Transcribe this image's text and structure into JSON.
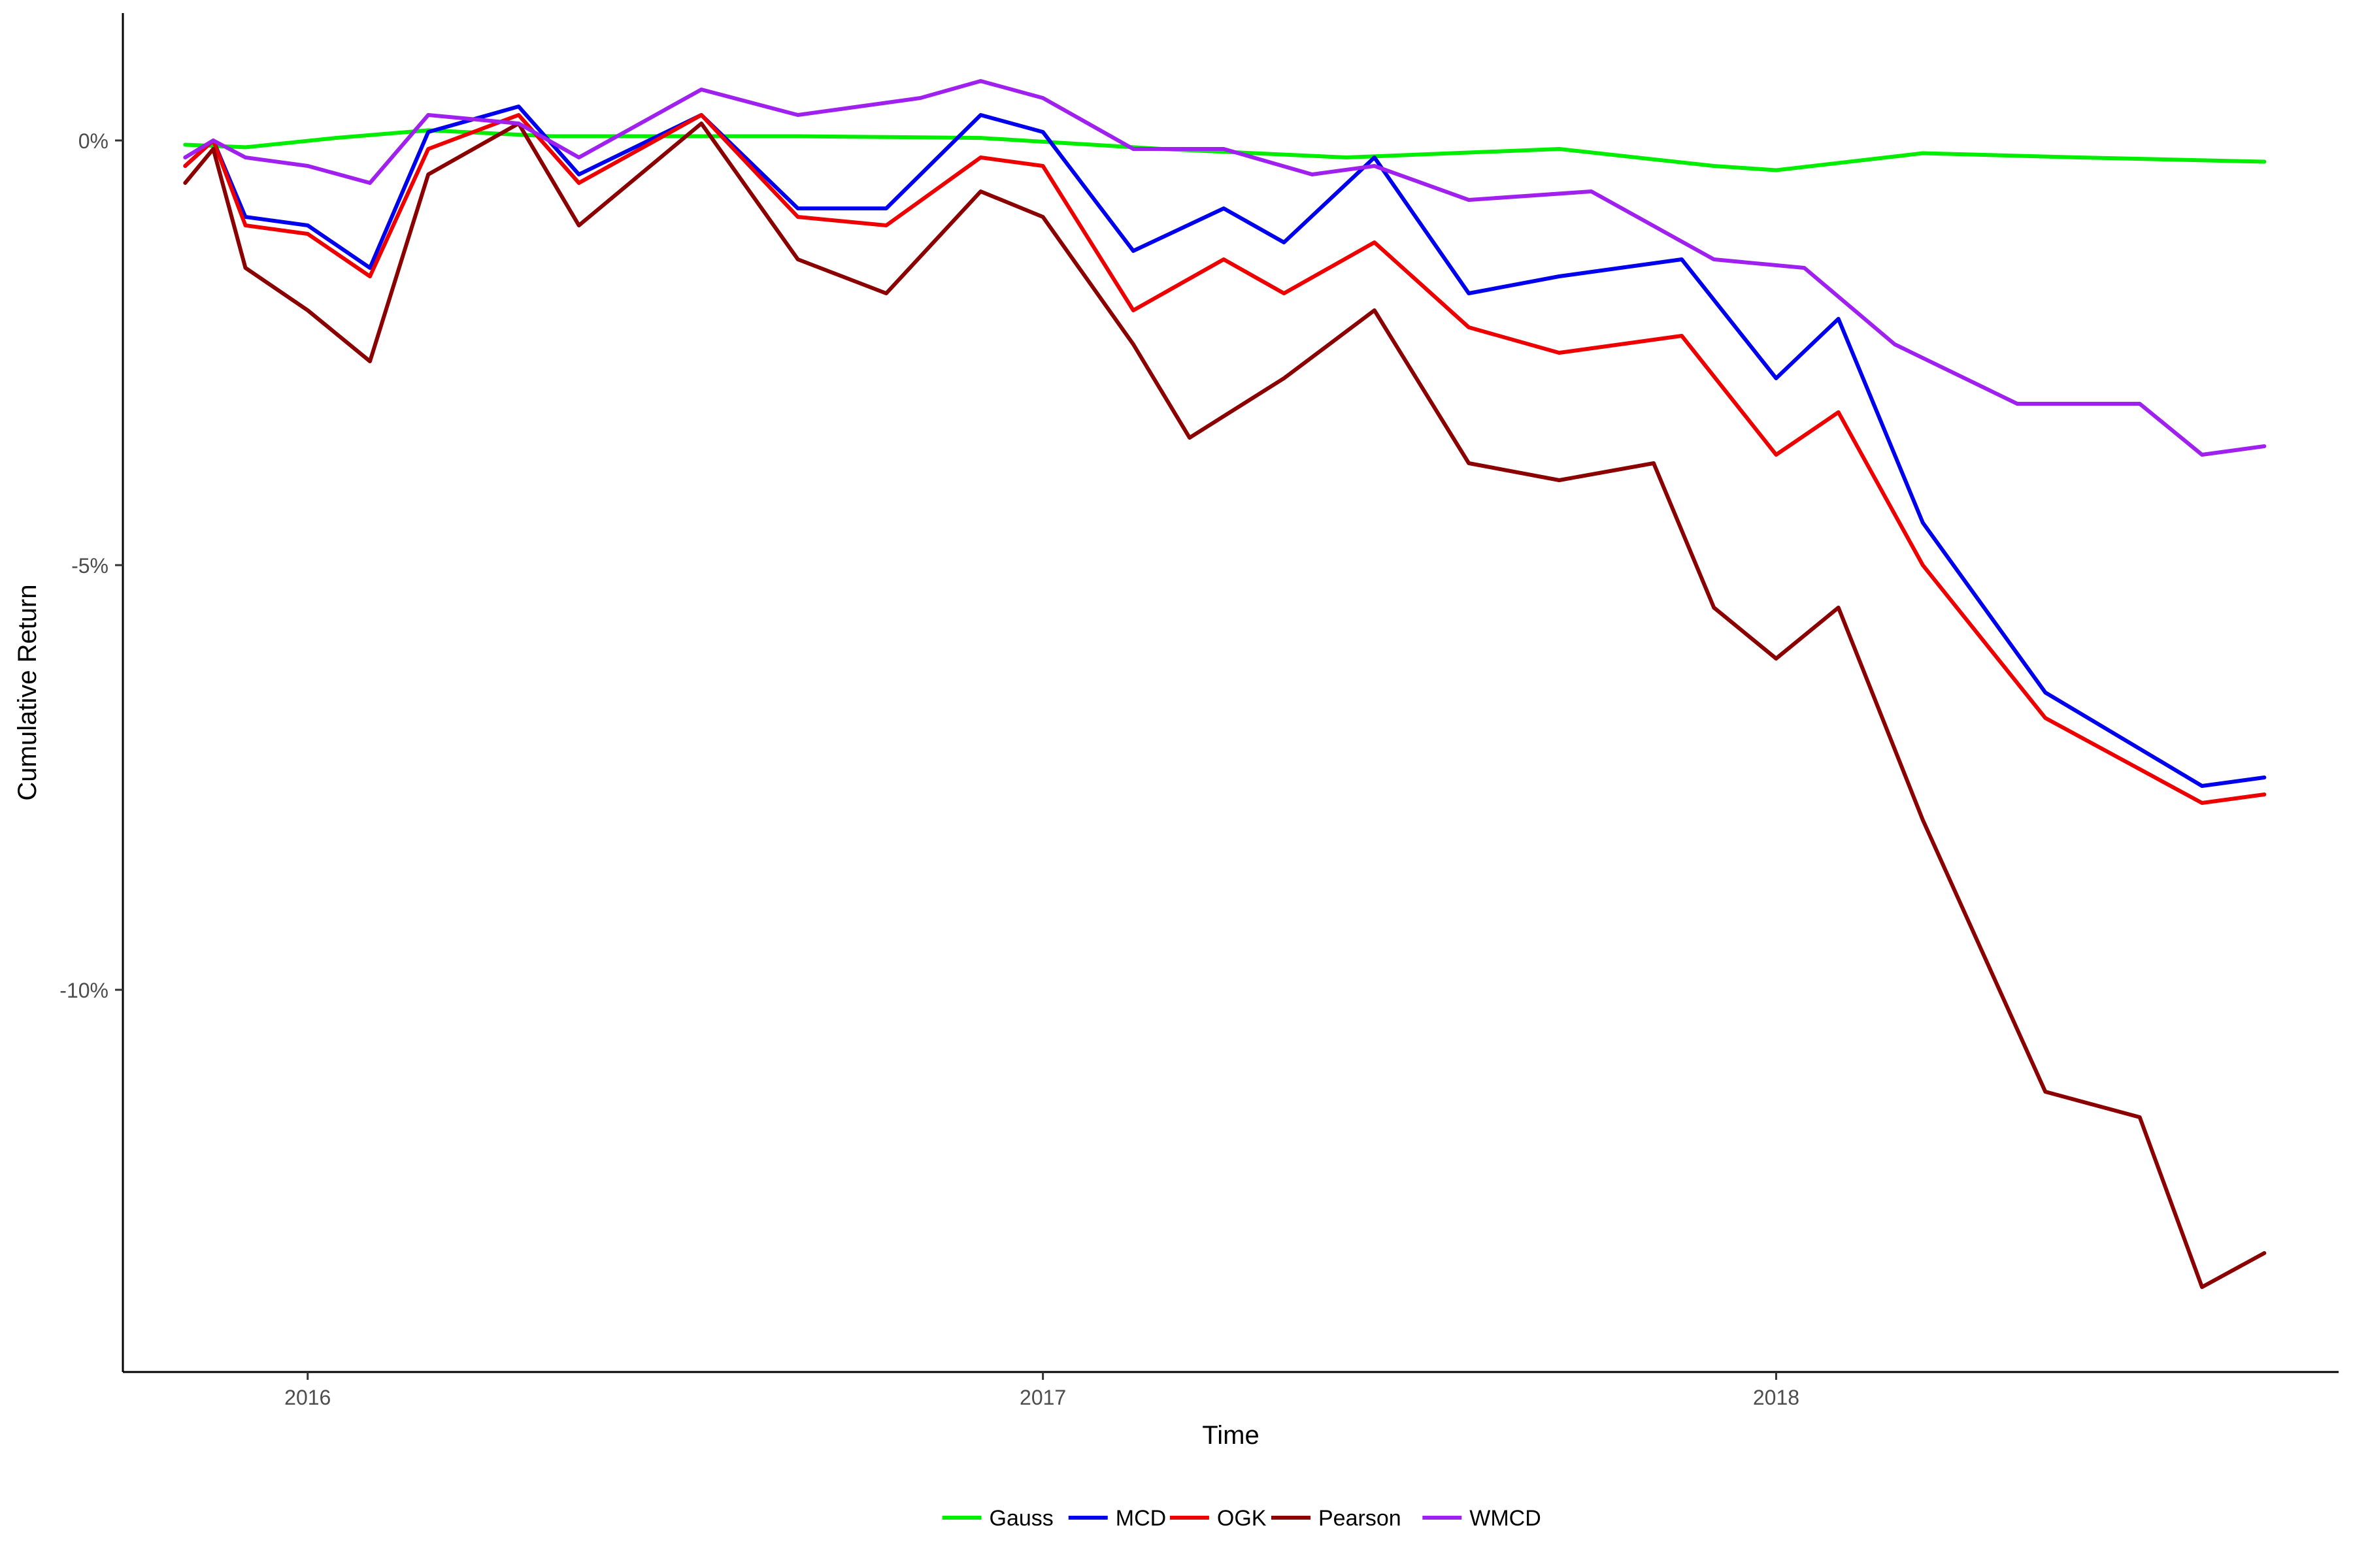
{
  "chart_data": {
    "type": "line",
    "title": "",
    "xlabel": "Time",
    "ylabel": "Cumulative Return",
    "xlim": [
      "2015-10-01",
      "2018-10-08"
    ],
    "ylim": [
      -14.5,
      1.5
    ],
    "x_ticks": [
      "2016-01-01",
      "2017-01-01",
      "2018-01-01"
    ],
    "x_tick_labels": [
      "2016",
      "2017",
      "2018"
    ],
    "y_ticks": [
      0,
      -5,
      -10
    ],
    "y_tick_labels": [
      "0%",
      "-5%",
      "-10%"
    ],
    "y_unit": "%",
    "grid": false,
    "legend_position": "bottom",
    "series": [
      {
        "name": "Gauss",
        "color": "#00ee00",
        "points": [
          [
            "2015-11-01",
            -0.05
          ],
          [
            "2015-12-01",
            -0.08
          ],
          [
            "2016-01-15",
            0.03
          ],
          [
            "2016-03-01",
            0.12
          ],
          [
            "2016-05-01",
            0.05
          ],
          [
            "2016-07-15",
            0.05
          ],
          [
            "2016-09-01",
            0.05
          ],
          [
            "2016-12-01",
            0.03
          ],
          [
            "2017-03-01",
            -0.1
          ],
          [
            "2017-06-01",
            -0.2
          ],
          [
            "2017-09-15",
            -0.1
          ],
          [
            "2017-12-01",
            -0.3
          ],
          [
            "2018-01-01",
            -0.35
          ],
          [
            "2018-03-15",
            -0.15
          ],
          [
            "2018-06-01",
            -0.2
          ],
          [
            "2018-09-01",
            -0.25
          ]
        ]
      },
      {
        "name": "MCD",
        "color": "#0000ee",
        "points": [
          [
            "2015-11-01",
            -0.3
          ],
          [
            "2015-11-15",
            0.0
          ],
          [
            "2015-12-01",
            -0.9
          ],
          [
            "2016-01-01",
            -1.0
          ],
          [
            "2016-02-01",
            -1.5
          ],
          [
            "2016-03-01",
            0.1
          ],
          [
            "2016-04-15",
            0.4
          ],
          [
            "2016-05-15",
            -0.4
          ],
          [
            "2016-07-15",
            0.3
          ],
          [
            "2016-09-01",
            -0.8
          ],
          [
            "2016-10-15",
            -0.8
          ],
          [
            "2016-12-01",
            0.3
          ],
          [
            "2017-01-01",
            0.1
          ],
          [
            "2017-02-15",
            -1.3
          ],
          [
            "2017-04-01",
            -0.8
          ],
          [
            "2017-05-01",
            -1.2
          ],
          [
            "2017-06-15",
            -0.2
          ],
          [
            "2017-08-01",
            -1.8
          ],
          [
            "2017-09-15",
            -1.6
          ],
          [
            "2017-11-15",
            -1.4
          ],
          [
            "2018-01-01",
            -2.8
          ],
          [
            "2018-02-01",
            -2.1
          ],
          [
            "2018-03-15",
            -4.5
          ],
          [
            "2018-05-15",
            -6.5
          ],
          [
            "2018-08-01",
            -7.6
          ],
          [
            "2018-09-01",
            -7.5
          ]
        ]
      },
      {
        "name": "OGK",
        "color": "#ee0000",
        "points": [
          [
            "2015-11-01",
            -0.3
          ],
          [
            "2015-11-15",
            0.0
          ],
          [
            "2015-12-01",
            -1.0
          ],
          [
            "2016-01-01",
            -1.1
          ],
          [
            "2016-02-01",
            -1.6
          ],
          [
            "2016-03-01",
            -0.1
          ],
          [
            "2016-04-15",
            0.3
          ],
          [
            "2016-05-15",
            -0.5
          ],
          [
            "2016-07-15",
            0.3
          ],
          [
            "2016-09-01",
            -0.9
          ],
          [
            "2016-10-15",
            -1.0
          ],
          [
            "2016-12-01",
            -0.2
          ],
          [
            "2017-01-01",
            -0.3
          ],
          [
            "2017-02-15",
            -2.0
          ],
          [
            "2017-04-01",
            -1.4
          ],
          [
            "2017-05-01",
            -1.8
          ],
          [
            "2017-06-15",
            -1.2
          ],
          [
            "2017-08-01",
            -2.2
          ],
          [
            "2017-09-15",
            -2.5
          ],
          [
            "2017-11-15",
            -2.3
          ],
          [
            "2018-01-01",
            -3.7
          ],
          [
            "2018-02-01",
            -3.2
          ],
          [
            "2018-03-15",
            -5.0
          ],
          [
            "2018-05-15",
            -6.8
          ],
          [
            "2018-08-01",
            -7.8
          ],
          [
            "2018-09-01",
            -7.7
          ]
        ]
      },
      {
        "name": "Pearson",
        "color": "#8b0000",
        "points": [
          [
            "2015-11-01",
            -0.5
          ],
          [
            "2015-11-15",
            -0.1
          ],
          [
            "2015-12-01",
            -1.5
          ],
          [
            "2016-01-01",
            -2.0
          ],
          [
            "2016-02-01",
            -2.6
          ],
          [
            "2016-03-01",
            -0.4
          ],
          [
            "2016-04-15",
            0.2
          ],
          [
            "2016-05-15",
            -1.0
          ],
          [
            "2016-07-15",
            0.2
          ],
          [
            "2016-09-01",
            -1.4
          ],
          [
            "2016-10-15",
            -1.8
          ],
          [
            "2016-12-01",
            -0.6
          ],
          [
            "2017-01-01",
            -0.9
          ],
          [
            "2017-02-15",
            -2.4
          ],
          [
            "2017-03-15",
            -3.5
          ],
          [
            "2017-05-01",
            -2.8
          ],
          [
            "2017-06-15",
            -2.0
          ],
          [
            "2017-08-01",
            -3.8
          ],
          [
            "2017-09-15",
            -4.0
          ],
          [
            "2017-11-01",
            -3.8
          ],
          [
            "2017-12-01",
            -5.5
          ],
          [
            "2018-01-01",
            -6.1
          ],
          [
            "2018-02-01",
            -5.5
          ],
          [
            "2018-03-15",
            -8.0
          ],
          [
            "2018-05-15",
            -11.2
          ],
          [
            "2018-07-01",
            -11.5
          ],
          [
            "2018-08-01",
            -13.5
          ],
          [
            "2018-09-01",
            -13.1
          ]
        ]
      },
      {
        "name": "WMCD",
        "color": "#a020f0",
        "points": [
          [
            "2015-11-01",
            -0.2
          ],
          [
            "2015-11-15",
            0.0
          ],
          [
            "2015-12-01",
            -0.2
          ],
          [
            "2016-01-01",
            -0.3
          ],
          [
            "2016-02-01",
            -0.5
          ],
          [
            "2016-03-01",
            0.3
          ],
          [
            "2016-04-15",
            0.2
          ],
          [
            "2016-05-15",
            -0.2
          ],
          [
            "2016-07-15",
            0.6
          ],
          [
            "2016-09-01",
            0.3
          ],
          [
            "2016-11-01",
            0.5
          ],
          [
            "2016-12-01",
            0.7
          ],
          [
            "2017-01-01",
            0.5
          ],
          [
            "2017-02-15",
            -0.1
          ],
          [
            "2017-04-01",
            -0.1
          ],
          [
            "2017-05-15",
            -0.4
          ],
          [
            "2017-06-15",
            -0.3
          ],
          [
            "2017-08-01",
            -0.7
          ],
          [
            "2017-10-01",
            -0.6
          ],
          [
            "2017-12-01",
            -1.4
          ],
          [
            "2018-01-15",
            -1.5
          ],
          [
            "2018-03-01",
            -2.4
          ],
          [
            "2018-05-01",
            -3.1
          ],
          [
            "2018-07-01",
            -3.1
          ],
          [
            "2018-08-01",
            -3.7
          ],
          [
            "2018-09-01",
            -3.6
          ]
        ]
      }
    ]
  }
}
